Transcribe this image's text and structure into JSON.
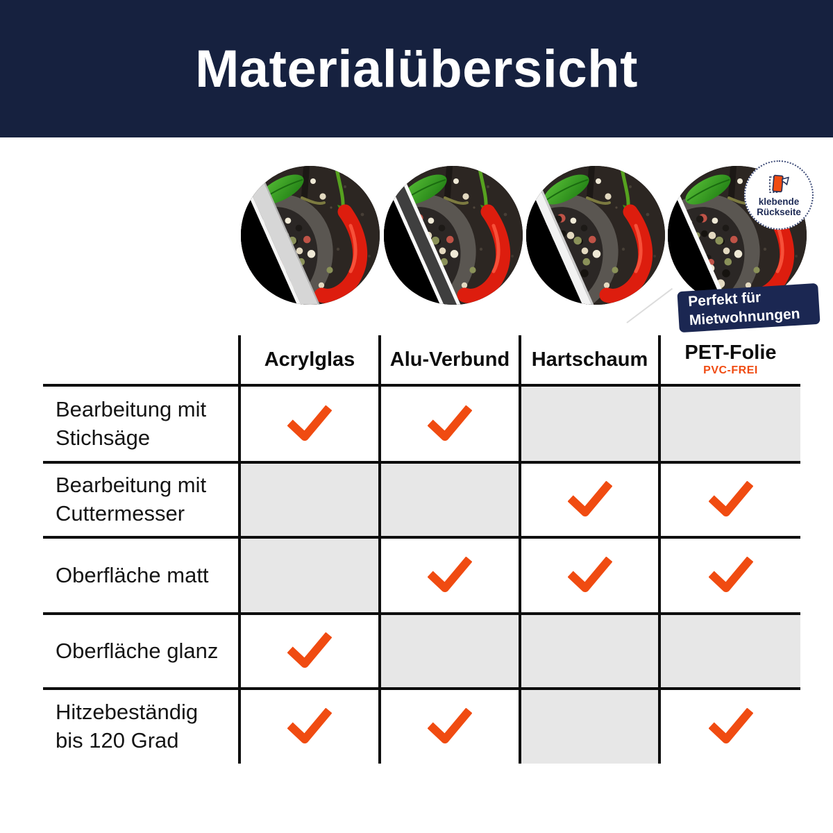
{
  "banner": {
    "title": "Materialübersicht"
  },
  "badge": {
    "line1": "klebende",
    "line2": "Rückseite"
  },
  "ribbon": {
    "line1": "Perfekt für",
    "line2": "Mietwohnungen"
  },
  "chart_data": {
    "type": "table",
    "title": "Materialübersicht",
    "columns": [
      {
        "label": "Acrylglas",
        "sublabel": ""
      },
      {
        "label": "Alu-Verbund",
        "sublabel": ""
      },
      {
        "label": "Hartschaum",
        "sublabel": ""
      },
      {
        "label": "PET-Folie",
        "sublabel": "PVC-FREI"
      }
    ],
    "rows": [
      {
        "label": "Bearbeitung mit Stichsäge",
        "checks": [
          true,
          true,
          false,
          false
        ]
      },
      {
        "label": "Bearbeitung mit Cuttermesser",
        "checks": [
          false,
          false,
          true,
          true
        ]
      },
      {
        "label": "Oberfläche matt",
        "checks": [
          false,
          true,
          true,
          true
        ]
      },
      {
        "label": "Oberfläche glanz",
        "checks": [
          true,
          false,
          false,
          false
        ]
      },
      {
        "label": "Hitzebeständig bis 120 Grad",
        "checks": [
          true,
          true,
          false,
          true
        ]
      }
    ],
    "check_symbol": "orange-checkmark",
    "empty_cell_style": "gray"
  },
  "colors": {
    "header_navy": "#16213f",
    "ribbon_navy": "#1b2752",
    "accent_orange": "#f04b11",
    "empty_cell_gray": "#e7e7e7",
    "table_border": "#0d0d0d"
  }
}
